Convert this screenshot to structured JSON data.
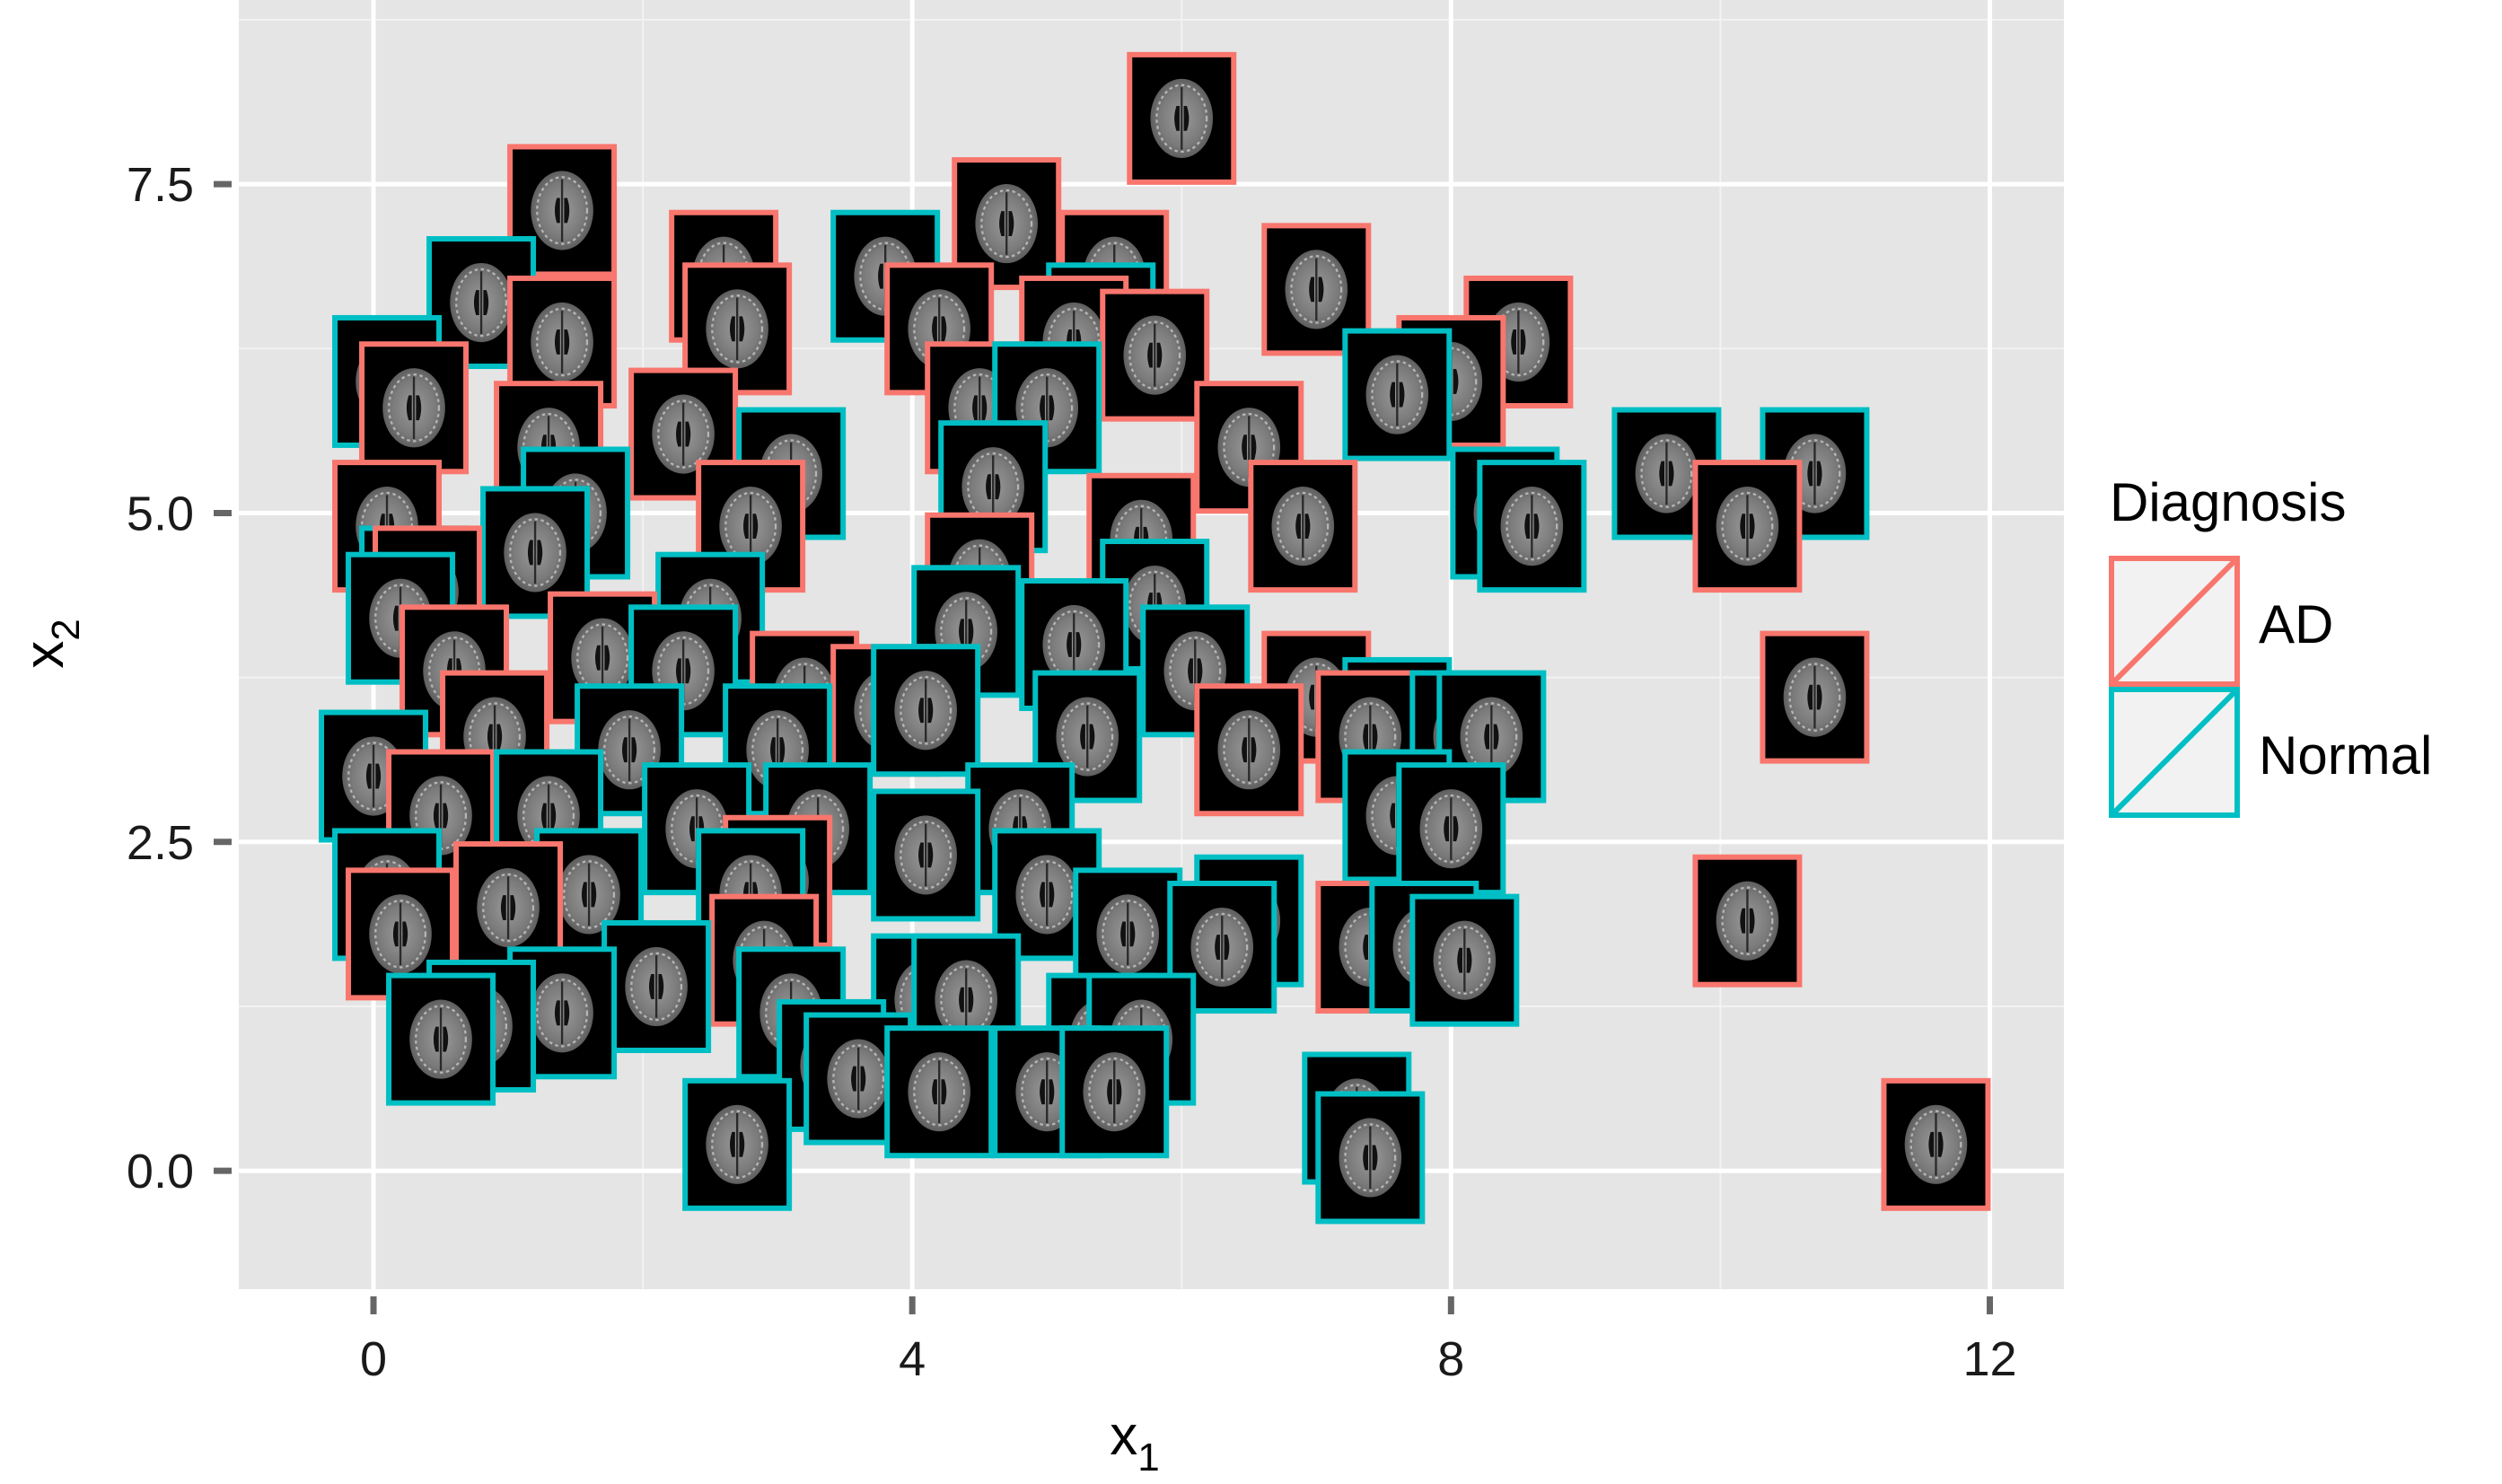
{
  "chart_data": {
    "type": "scatter",
    "marker": "brain-scan-thumbnail",
    "xlabel": "x",
    "xlabel_sub": "1",
    "ylabel": "x",
    "ylabel_sub": "2",
    "xlim": [
      -1,
      12.55
    ],
    "ylim": [
      -0.9,
      8.9
    ],
    "xticks": [
      0,
      4,
      8,
      12
    ],
    "yticks": [
      0.0,
      2.5,
      5.0,
      7.5
    ],
    "xtick_labels": [
      "0",
      "4",
      "8",
      "12"
    ],
    "ytick_labels": [
      "0.0",
      "2.5",
      "5.0",
      "7.5"
    ],
    "grid": true,
    "legend": {
      "title": "Diagnosis",
      "position": "right",
      "entries": [
        {
          "label": "AD",
          "color": "#F8766D"
        },
        {
          "label": "Normal",
          "color": "#00BFC4"
        }
      ]
    },
    "colors": {
      "AD": "#F8766D",
      "Normal": "#00BFC4"
    },
    "series": [
      {
        "name": "AD",
        "color": "#F8766D",
        "points": [
          [
            1.4,
            7.3
          ],
          [
            2.6,
            6.8
          ],
          [
            6.0,
            8.0
          ],
          [
            4.7,
            7.2
          ],
          [
            7.0,
            6.7
          ],
          [
            5.5,
            6.8
          ],
          [
            1.4,
            6.3
          ],
          [
            2.7,
            6.4
          ],
          [
            4.2,
            6.4
          ],
          [
            5.2,
            6.3
          ],
          [
            5.8,
            6.2
          ],
          [
            8.5,
            6.3
          ],
          [
            8.0,
            6.0
          ],
          [
            0.3,
            5.8
          ],
          [
            2.3,
            5.6
          ],
          [
            4.5,
            5.8
          ],
          [
            6.5,
            5.5
          ],
          [
            0.1,
            4.9
          ],
          [
            1.3,
            5.5
          ],
          [
            2.8,
            4.9
          ],
          [
            5.7,
            4.8
          ],
          [
            6.9,
            4.9
          ],
          [
            0.4,
            4.4
          ],
          [
            4.5,
            4.5
          ],
          [
            10.2,
            4.9
          ],
          [
            0.6,
            3.8
          ],
          [
            1.7,
            3.9
          ],
          [
            3.2,
            3.6
          ],
          [
            3.8,
            3.5
          ],
          [
            6.5,
            3.2
          ],
          [
            7.0,
            3.6
          ],
          [
            7.4,
            3.3
          ],
          [
            0.9,
            3.3
          ],
          [
            10.7,
            3.6
          ],
          [
            0.5,
            2.7
          ],
          [
            3.0,
            2.2
          ],
          [
            0.2,
            1.8
          ],
          [
            1.0,
            2.0
          ],
          [
            7.4,
            1.7
          ],
          [
            10.2,
            1.9
          ],
          [
            11.6,
            0.2
          ],
          [
            2.9,
            1.6
          ]
        ]
      },
      {
        "name": "Normal",
        "color": "#00BFC4",
        "points": [
          [
            0.8,
            6.6
          ],
          [
            3.8,
            6.8
          ],
          [
            0.1,
            6.0
          ],
          [
            5.4,
            6.4
          ],
          [
            7.6,
            5.9
          ],
          [
            9.6,
            5.3
          ],
          [
            5.0,
            5.8
          ],
          [
            1.5,
            5.0
          ],
          [
            3.1,
            5.3
          ],
          [
            4.6,
            5.2
          ],
          [
            8.4,
            5.0
          ],
          [
            8.6,
            4.9
          ],
          [
            0.3,
            4.4
          ],
          [
            1.2,
            4.7
          ],
          [
            0.2,
            4.2
          ],
          [
            2.5,
            4.2
          ],
          [
            2.3,
            3.8
          ],
          [
            4.4,
            4.1
          ],
          [
            5.2,
            4.0
          ],
          [
            5.8,
            4.3
          ],
          [
            6.1,
            3.8
          ],
          [
            7.6,
            3.4
          ],
          [
            8.1,
            3.3
          ],
          [
            8.3,
            3.3
          ],
          [
            1.3,
            2.7
          ],
          [
            1.9,
            3.2
          ],
          [
            3.0,
            3.2
          ],
          [
            4.1,
            3.5
          ],
          [
            5.3,
            3.3
          ],
          [
            0.0,
            3.0
          ],
          [
            2.4,
            2.6
          ],
          [
            4.1,
            2.4
          ],
          [
            4.8,
            2.6
          ],
          [
            7.6,
            2.7
          ],
          [
            8.0,
            2.6
          ],
          [
            0.1,
            2.1
          ],
          [
            1.6,
            2.1
          ],
          [
            2.8,
            2.1
          ],
          [
            3.3,
            2.6
          ],
          [
            5.0,
            2.1
          ],
          [
            5.6,
            1.8
          ],
          [
            6.5,
            1.9
          ],
          [
            6.3,
            1.7
          ],
          [
            7.8,
            1.7
          ],
          [
            8.1,
            1.6
          ],
          [
            0.5,
            1.0
          ],
          [
            0.8,
            1.1
          ],
          [
            1.4,
            1.2
          ],
          [
            2.1,
            1.4
          ],
          [
            3.1,
            1.2
          ],
          [
            4.1,
            1.3
          ],
          [
            4.4,
            1.3
          ],
          [
            3.4,
            0.8
          ],
          [
            3.6,
            0.7
          ],
          [
            4.2,
            0.6
          ],
          [
            5.0,
            0.6
          ],
          [
            5.5,
            0.6
          ],
          [
            5.4,
            1.0
          ],
          [
            5.7,
            1.0
          ],
          [
            2.7,
            0.2
          ],
          [
            7.3,
            0.4
          ],
          [
            7.4,
            0.1
          ],
          [
            10.7,
            5.3
          ]
        ]
      }
    ]
  }
}
